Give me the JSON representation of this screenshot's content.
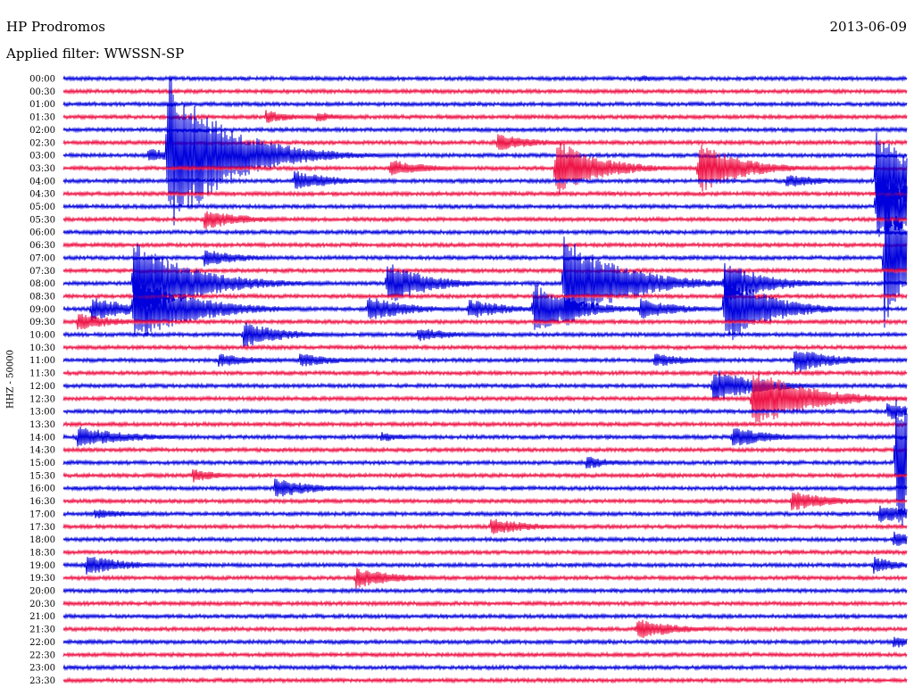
{
  "header": {
    "station": "HP Prodromos",
    "date": "2013-06-09",
    "filter_text": "Applied filter: WWSSN-SP",
    "channel_label": "HHZ - 50000"
  },
  "colors": {
    "odd_rows": "#0000dd",
    "even_rows": "#ee1144",
    "background": "#ffffff"
  },
  "chart_data": {
    "type": "helicorder",
    "title": "HP Prodromos",
    "date": "2013-06-09",
    "filter": "WWSSN-SP",
    "channel": "HHZ - 50000",
    "row_minutes": 30,
    "row_labels": [
      "00:00",
      "00:30",
      "01:00",
      "01:30",
      "02:00",
      "02:30",
      "03:00",
      "03:30",
      "04:00",
      "04:30",
      "05:00",
      "05:30",
      "06:00",
      "06:30",
      "07:00",
      "07:30",
      "08:00",
      "08:30",
      "09:00",
      "09:30",
      "10:00",
      "10:30",
      "11:00",
      "11:30",
      "12:00",
      "12:30",
      "13:00",
      "13:30",
      "14:00",
      "14:30",
      "15:00",
      "15:30",
      "16:00",
      "16:30",
      "17:00",
      "17:30",
      "18:00",
      "18:30",
      "19:00",
      "19:30",
      "20:00",
      "20:30",
      "21:00",
      "21:30",
      "22:00",
      "22:30",
      "23:00",
      "23:30"
    ],
    "row_color_pattern": [
      "blue",
      "red"
    ],
    "events": [
      {
        "row": 0,
        "minute": 20.5,
        "amp": 4,
        "dur": 1
      },
      {
        "row": 3,
        "minute": 7.2,
        "amp": 8,
        "dur": 1
      },
      {
        "row": 3,
        "minute": 9,
        "amp": 6,
        "dur": 1
      },
      {
        "row": 6,
        "minute": 3,
        "amp": 8,
        "dur": 1.5
      },
      {
        "row": 6,
        "minute": 3.7,
        "amp": 95,
        "dur": 2
      },
      {
        "row": 7,
        "minute": 11.6,
        "amp": 10,
        "dur": 1.5
      },
      {
        "row": 7,
        "minute": 17.5,
        "amp": 35,
        "dur": 1.5
      },
      {
        "row": 8,
        "minute": 8.2,
        "amp": 12,
        "dur": 1.5
      },
      {
        "row": 5,
        "minute": 15.4,
        "amp": 10,
        "dur": 1.5
      },
      {
        "row": 7,
        "minute": 22.6,
        "amp": 30,
        "dur": 1.5
      },
      {
        "row": 8,
        "minute": 25.7,
        "amp": 8,
        "dur": 1.5
      },
      {
        "row": 8,
        "minute": 28.9,
        "amp": 60,
        "dur": 1.5
      },
      {
        "row": 10,
        "minute": 28.9,
        "amp": 40,
        "dur": 2
      },
      {
        "row": 11,
        "minute": 5,
        "amp": 12,
        "dur": 1.5
      },
      {
        "row": 14,
        "minute": 5,
        "amp": 10,
        "dur": 1.5
      },
      {
        "row": 16,
        "minute": 2.5,
        "amp": 50,
        "dur": 2
      },
      {
        "row": 16,
        "minute": 11.5,
        "amp": 25,
        "dur": 1.5
      },
      {
        "row": 16,
        "minute": 17.8,
        "amp": 55,
        "dur": 2
      },
      {
        "row": 16,
        "minute": 23.5,
        "amp": 25,
        "dur": 1.5
      },
      {
        "row": 18,
        "minute": 1,
        "amp": 15,
        "dur": 1.5
      },
      {
        "row": 18,
        "minute": 2.5,
        "amp": 40,
        "dur": 2
      },
      {
        "row": 18,
        "minute": 10.8,
        "amp": 15,
        "dur": 1.5
      },
      {
        "row": 18,
        "minute": 14.4,
        "amp": 12,
        "dur": 1.5
      },
      {
        "row": 18,
        "minute": 16.7,
        "amp": 30,
        "dur": 1.5
      },
      {
        "row": 18,
        "minute": 20.5,
        "amp": 12,
        "dur": 1.5
      },
      {
        "row": 18,
        "minute": 23.5,
        "amp": 45,
        "dur": 1.5
      },
      {
        "row": 19,
        "minute": 0.5,
        "amp": 10,
        "dur": 1.5
      },
      {
        "row": 20,
        "minute": 6.4,
        "amp": 15,
        "dur": 1.5
      },
      {
        "row": 20,
        "minute": 12.6,
        "amp": 8,
        "dur": 1.5
      },
      {
        "row": 22,
        "minute": 5.5,
        "amp": 8,
        "dur": 1.5
      },
      {
        "row": 22,
        "minute": 8.4,
        "amp": 8,
        "dur": 1.5
      },
      {
        "row": 22,
        "minute": 21,
        "amp": 8,
        "dur": 1.5
      },
      {
        "row": 22,
        "minute": 26,
        "amp": 15,
        "dur": 1.5
      },
      {
        "row": 24,
        "minute": 23.1,
        "amp": 20,
        "dur": 1.5
      },
      {
        "row": 24,
        "minute": 24.8,
        "amp": 8,
        "dur": 1.5
      },
      {
        "row": 25,
        "minute": 24.5,
        "amp": 35,
        "dur": 2
      },
      {
        "row": 26,
        "minute": 29.3,
        "amp": 10,
        "dur": 1.5
      },
      {
        "row": 28,
        "minute": 0.5,
        "amp": 12,
        "dur": 2
      },
      {
        "row": 28,
        "minute": 11.3,
        "amp": 6,
        "dur": 1
      },
      {
        "row": 28,
        "minute": 23.8,
        "amp": 12,
        "dur": 1.5
      },
      {
        "row": 30,
        "minute": 18.6,
        "amp": 8,
        "dur": 1
      },
      {
        "row": 32,
        "minute": 7.5,
        "amp": 12,
        "dur": 1.5
      },
      {
        "row": 31,
        "minute": 4.6,
        "amp": 8,
        "dur": 1
      },
      {
        "row": 34,
        "minute": 1.1,
        "amp": 6,
        "dur": 1.5
      },
      {
        "row": 35,
        "minute": 15.2,
        "amp": 10,
        "dur": 1.5
      },
      {
        "row": 33,
        "minute": 25.9,
        "amp": 12,
        "dur": 1.5
      },
      {
        "row": 34,
        "minute": 29,
        "amp": 10,
        "dur": 2
      },
      {
        "row": 38,
        "minute": 0.8,
        "amp": 12,
        "dur": 1.5
      },
      {
        "row": 39,
        "minute": 10.4,
        "amp": 12,
        "dur": 1.5
      },
      {
        "row": 43,
        "minute": 20.4,
        "amp": 12,
        "dur": 1.5
      },
      {
        "row": 44,
        "minute": 29.5,
        "amp": 8,
        "dur": 1
      },
      {
        "row": 36,
        "minute": 29.5,
        "amp": 10,
        "dur": 1
      },
      {
        "row": 38,
        "minute": 28.8,
        "amp": 10,
        "dur": 1
      },
      {
        "row": 30,
        "minute": 29.6,
        "amp": 80,
        "dur": 2
      },
      {
        "row": 14,
        "minute": 29.2,
        "amp": 80,
        "dur": 1
      }
    ],
    "ylabel": "HHZ - 50000"
  }
}
